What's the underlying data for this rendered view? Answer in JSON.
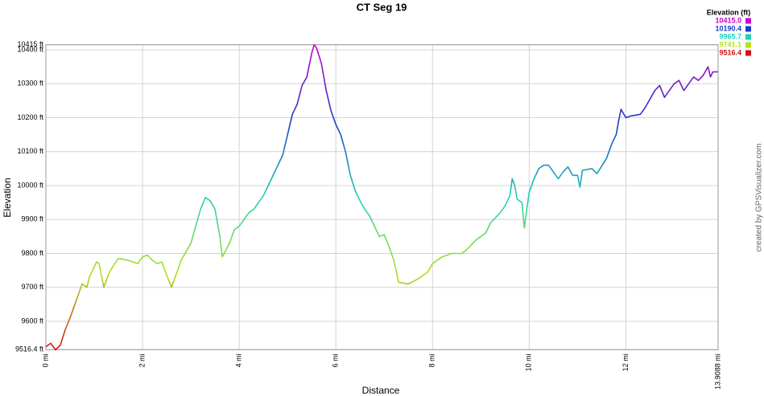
{
  "chart_data": {
    "type": "line",
    "title": "CT Seg 19",
    "x_label": "Distance",
    "y_label": "Elevation",
    "credit": "created by GPSVisualizer.com",
    "legend_title": "Elevation (ft)",
    "legend": [
      {
        "value": 10415.0,
        "label": "10415.0",
        "color": "#cc00cc"
      },
      {
        "value": 10190.4,
        "label": "10190.4",
        "color": "#1a3cc8"
      },
      {
        "value": 9965.7,
        "label": "9965.7",
        "color": "#1ed2b4"
      },
      {
        "value": 9741.1,
        "label": "9741.1",
        "color": "#b4e01e"
      },
      {
        "value": 9516.4,
        "label": "9516.4",
        "color": "#d21414"
      }
    ],
    "grid": true,
    "xlim": [
      0,
      13.9088
    ],
    "ylim": [
      9516.4,
      10415
    ],
    "xticks": [
      {
        "value": 0,
        "label": "0 mi"
      },
      {
        "value": 2,
        "label": "2 mi"
      },
      {
        "value": 4,
        "label": "4 mi"
      },
      {
        "value": 6,
        "label": "6 mi"
      },
      {
        "value": 8,
        "label": "8 mi"
      },
      {
        "value": 10,
        "label": "10 mi"
      },
      {
        "value": 12,
        "label": "12 mi"
      },
      {
        "value": 13.9088,
        "label": "13.9088 mi"
      }
    ],
    "yticks": [
      {
        "value": 9516.4,
        "label": "9516.4 ft"
      },
      {
        "value": 9600,
        "label": "9600 ft"
      },
      {
        "value": 9700,
        "label": "9700 ft"
      },
      {
        "value": 9800,
        "label": "9800 ft"
      },
      {
        "value": 9900,
        "label": "9900 ft"
      },
      {
        "value": 10000,
        "label": "10000 ft"
      },
      {
        "value": 10100,
        "label": "10100 ft"
      },
      {
        "value": 10200,
        "label": "10200 ft"
      },
      {
        "value": 10300,
        "label": "10300 ft"
      },
      {
        "value": 10400,
        "label": "10400 ft"
      },
      {
        "value": 10415,
        "label": "10415 ft"
      }
    ],
    "x": [
      0,
      0.1,
      0.2,
      0.3,
      0.4,
      0.5,
      0.6,
      0.7,
      0.75,
      0.8,
      0.85,
      0.9,
      1.0,
      1.05,
      1.1,
      1.2,
      1.3,
      1.4,
      1.5,
      1.7,
      1.8,
      1.9,
      2.0,
      2.1,
      2.2,
      2.3,
      2.4,
      2.5,
      2.6,
      2.7,
      2.8,
      3.0,
      3.1,
      3.2,
      3.3,
      3.4,
      3.5,
      3.6,
      3.65,
      3.8,
      3.9,
      4.0,
      4.2,
      4.3,
      4.5,
      4.6,
      4.7,
      4.8,
      4.9,
      5.0,
      5.1,
      5.2,
      5.3,
      5.4,
      5.5,
      5.55,
      5.6,
      5.7,
      5.8,
      5.9,
      6.0,
      6.1,
      6.2,
      6.3,
      6.4,
      6.5,
      6.6,
      6.7,
      6.8,
      6.9,
      7.0,
      7.1,
      7.2,
      7.3,
      7.5,
      7.7,
      7.9,
      8.0,
      8.2,
      8.4,
      8.6,
      8.7,
      8.9,
      9.1,
      9.2,
      9.4,
      9.5,
      9.6,
      9.65,
      9.7,
      9.75,
      9.85,
      9.9,
      9.95,
      10.0,
      10.1,
      10.2,
      10.3,
      10.4,
      10.5,
      10.6,
      10.7,
      10.8,
      10.9,
      11.0,
      11.05,
      11.1,
      11.3,
      11.4,
      11.6,
      11.7,
      11.8,
      11.85,
      11.9,
      12.0,
      12.1,
      12.3,
      12.4,
      12.6,
      12.7,
      12.8,
      12.9,
      13.0,
      13.1,
      13.2,
      13.3,
      13.4,
      13.5,
      13.6,
      13.7,
      13.75,
      13.8,
      13.9088
    ],
    "values": [
      9525,
      9535,
      9516,
      9530,
      9575,
      9610,
      9650,
      9690,
      9710,
      9705,
      9700,
      9730,
      9760,
      9775,
      9770,
      9700,
      9740,
      9765,
      9785,
      9780,
      9775,
      9770,
      9790,
      9795,
      9780,
      9770,
      9775,
      9735,
      9700,
      9740,
      9780,
      9830,
      9880,
      9930,
      9965,
      9955,
      9930,
      9850,
      9790,
      9830,
      9870,
      9880,
      9920,
      9930,
      9970,
      10000,
      10030,
      10060,
      10090,
      10150,
      10210,
      10240,
      10295,
      10320,
      10390,
      10415,
      10405,
      10360,
      10280,
      10220,
      10180,
      10150,
      10100,
      10030,
      9985,
      9955,
      9930,
      9910,
      9880,
      9850,
      9855,
      9820,
      9780,
      9715,
      9710,
      9725,
      9745,
      9770,
      9790,
      9800,
      9800,
      9810,
      9840,
      9860,
      9890,
      9920,
      9940,
      9970,
      10020,
      10000,
      9960,
      9950,
      9875,
      9930,
      9980,
      10020,
      10050,
      10060,
      10060,
      10040,
      10020,
      10040,
      10055,
      10030,
      10030,
      9995,
      10045,
      10050,
      10035,
      10080,
      10120,
      10150,
      10190,
      10225,
      10200,
      10205,
      10210,
      10230,
      10280,
      10295,
      10260,
      10280,
      10300,
      10310,
      10280,
      10300,
      10320,
      10310,
      10325,
      10350,
      10320,
      10335,
      10335
    ]
  }
}
